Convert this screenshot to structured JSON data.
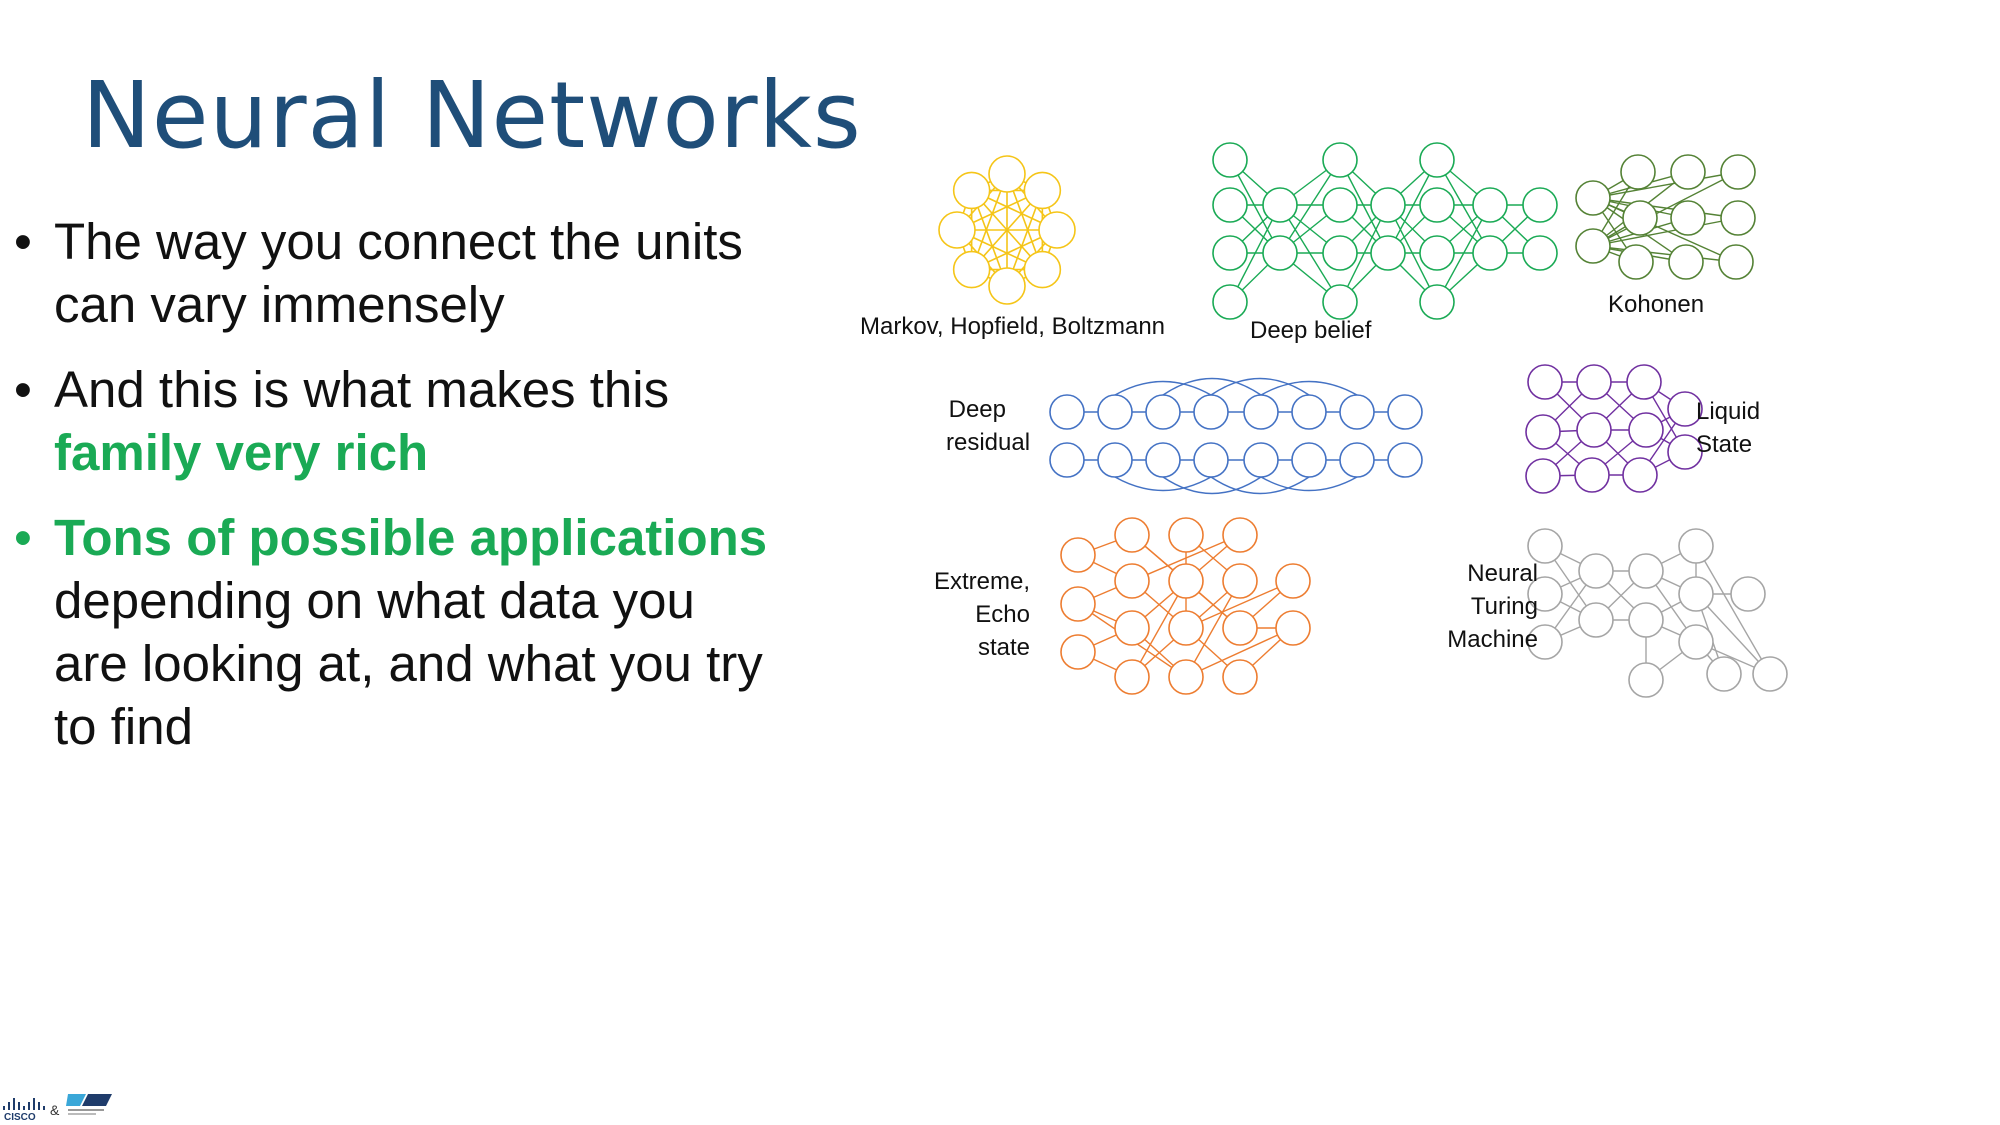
{
  "slide": {
    "title": "Neural Networks",
    "bullets": [
      {
        "text": "The way you connect the units can vary immensely"
      },
      {
        "text": "And this is what makes this ",
        "highlight": "family very rich"
      },
      {
        "highlight": "Tons of possible applications",
        "text": " depending on what data you are looking at, and what you try to find"
      }
    ]
  },
  "diagram": {
    "networks": [
      {
        "id": "markov",
        "label": "Markov, Hopfield, Boltzmann",
        "color": "#f5c518"
      },
      {
        "id": "deep-belief",
        "label": "Deep belief",
        "color": "#1aaa55"
      },
      {
        "id": "kohonen",
        "label": "Kohonen",
        "color": "#548235"
      },
      {
        "id": "deep-residual",
        "label": "Deep\nresidual",
        "color": "#4472c4"
      },
      {
        "id": "liquid-state",
        "label": "Liquid\nState",
        "color": "#7030a0"
      },
      {
        "id": "extreme-echo",
        "label": "Extreme,\nEcho state",
        "color": "#ed7d31"
      },
      {
        "id": "neural-turing",
        "label": "Neural\nTuring\nMachine",
        "color": "#a5a5a5"
      }
    ]
  },
  "footer": {
    "logo_cisco": "CISCO",
    "logo_amp": "&"
  }
}
